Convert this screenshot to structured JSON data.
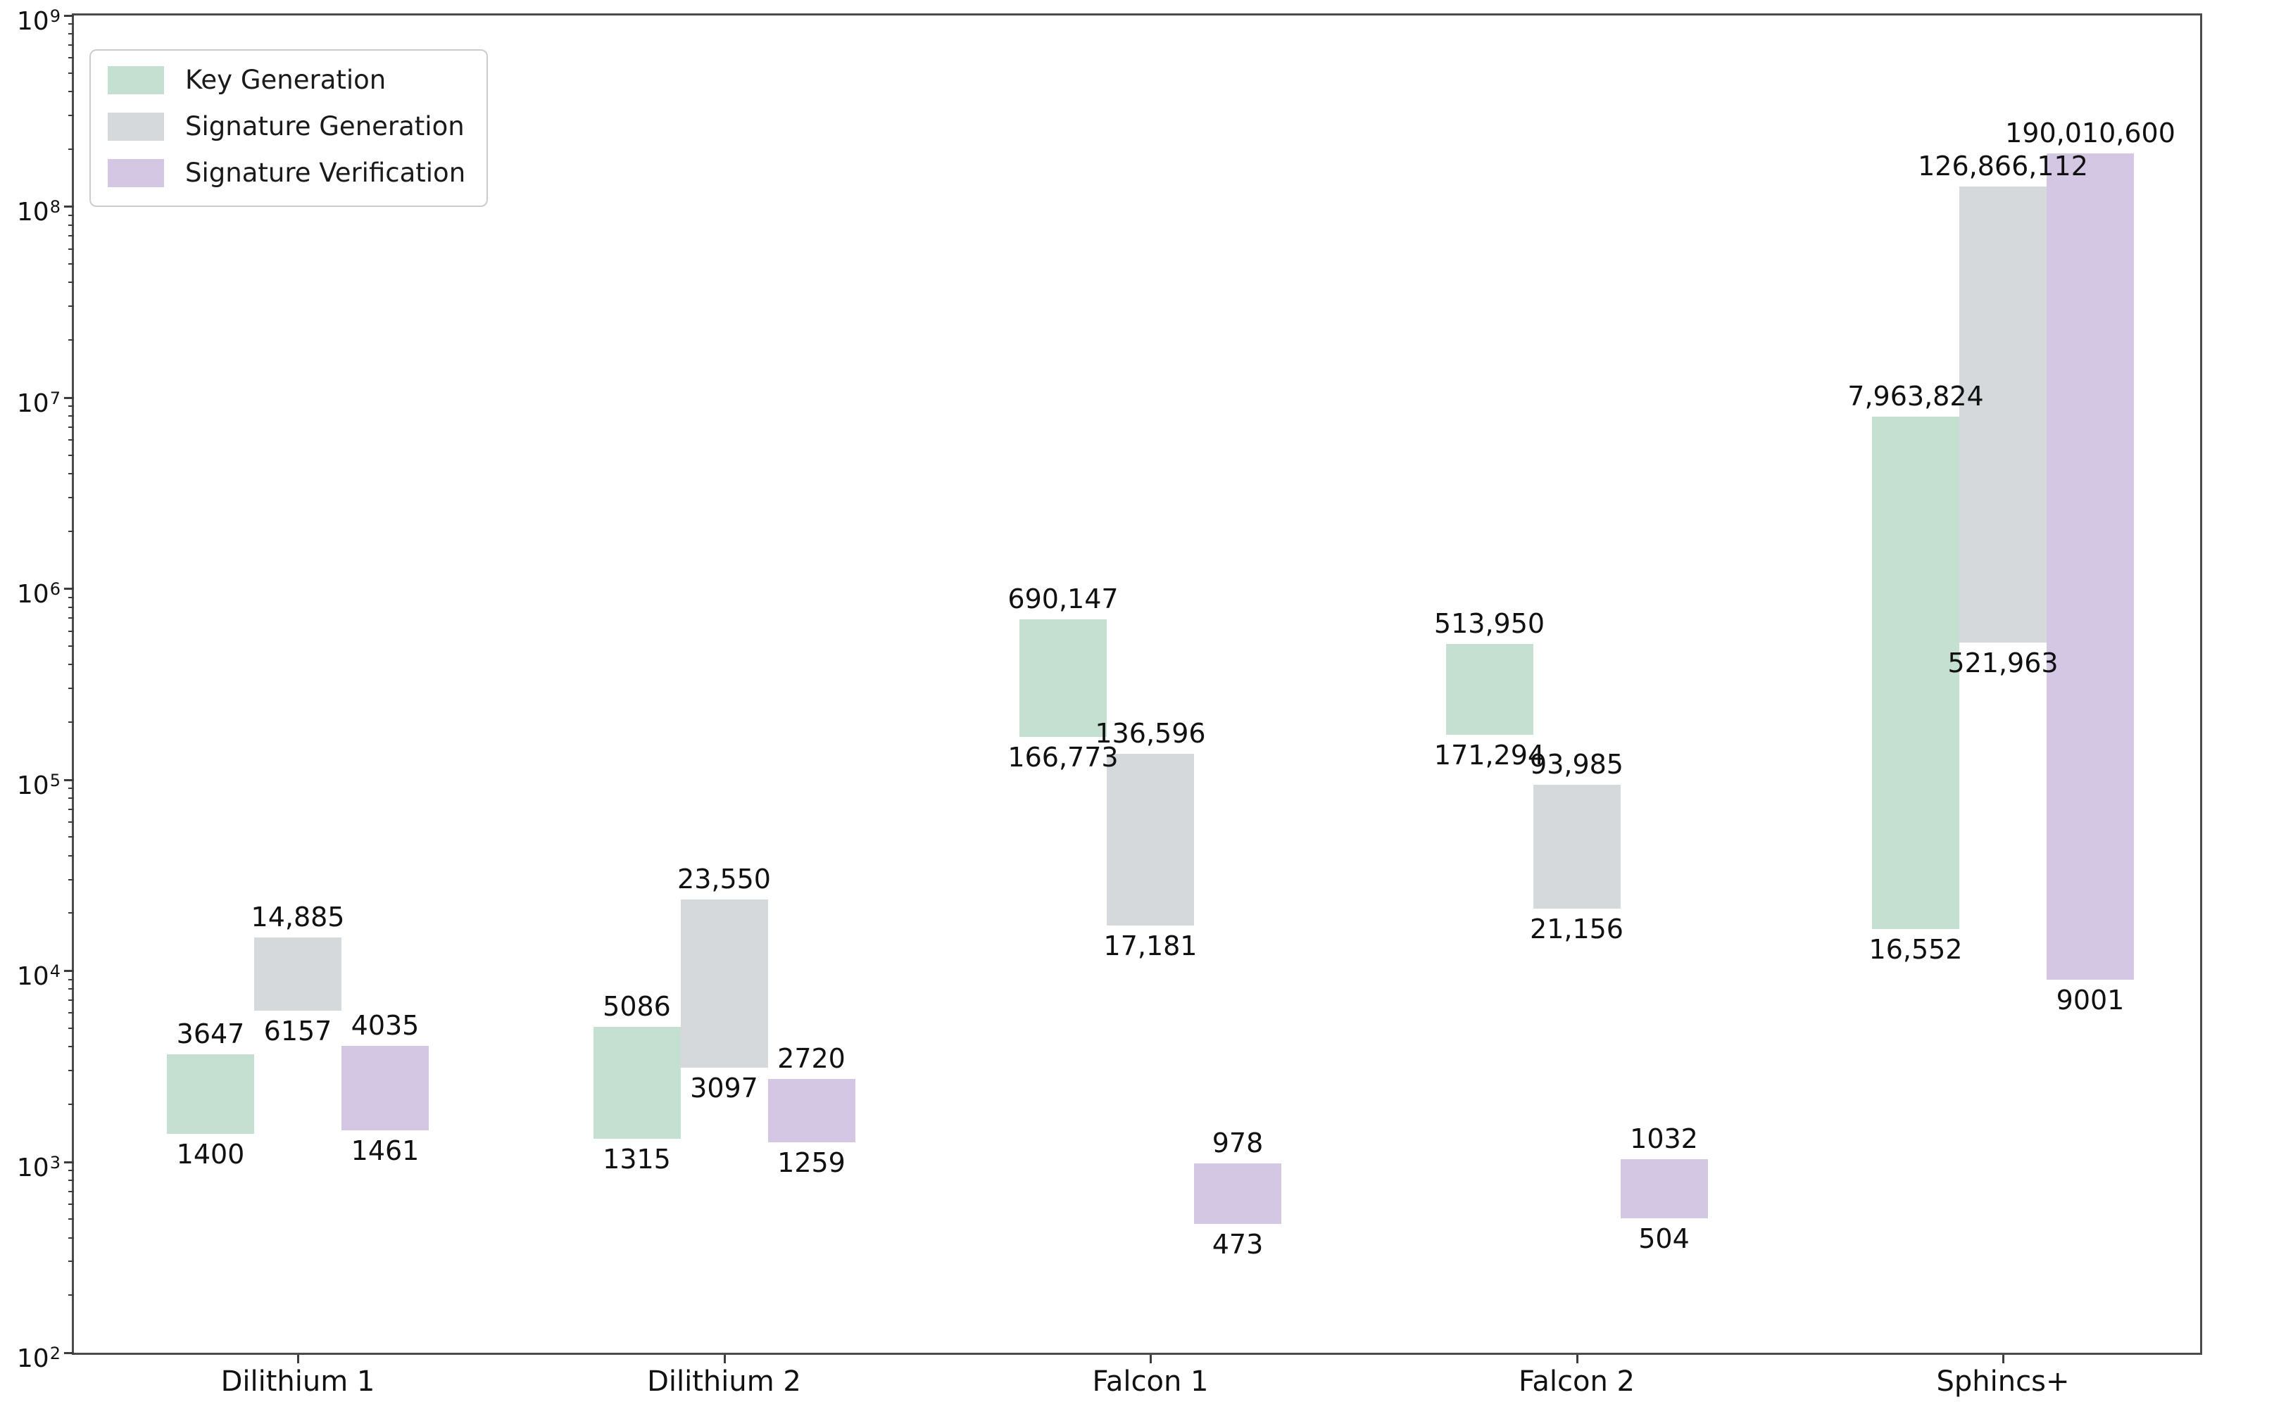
{
  "figure": {
    "background": "#ffffff",
    "text_color": "#111111",
    "axis_color": "#4b4b4b"
  },
  "legend": {
    "position": "upper left",
    "items": [
      {
        "label": "Key Generation",
        "color": "#c5e0d0"
      },
      {
        "label": "Signature Generation",
        "color": "#d5d9dc"
      },
      {
        "label": "Signature Verification",
        "color": "#d4c7e4"
      }
    ]
  },
  "chart_data": {
    "type": "bar",
    "subtype": "floating_range_bars",
    "title": "",
    "xlabel": "",
    "ylabel": "",
    "yscale": "log",
    "ylim": [
      100,
      1000000000
    ],
    "y_tick_exponents": [
      2,
      3,
      4,
      5,
      6,
      7,
      8,
      9
    ],
    "grid": false,
    "legend_position": "upper left",
    "categories": [
      "Dilithium 1",
      "Dilithium 2",
      "Falcon 1",
      "Falcon 2",
      "Sphincs+"
    ],
    "series": [
      {
        "name": "Key Generation",
        "color": "#c5e0d0",
        "ranges": [
          [
            1400,
            3647
          ],
          [
            1315,
            5086
          ],
          [
            166773,
            690147
          ],
          [
            171294,
            513950
          ],
          [
            16552,
            7963824
          ]
        ],
        "range_labels": [
          [
            "1400",
            "3647"
          ],
          [
            "1315",
            "5086"
          ],
          [
            "166,773",
            "690,147"
          ],
          [
            "171,294",
            "513,950"
          ],
          [
            "16,552",
            "7,963,824"
          ]
        ]
      },
      {
        "name": "Signature Generation",
        "color": "#d5d9dc",
        "ranges": [
          [
            6157,
            14885
          ],
          [
            3097,
            23550
          ],
          [
            17181,
            136596
          ],
          [
            21156,
            93985
          ],
          [
            521963,
            126866112
          ]
        ],
        "range_labels": [
          [
            "6157",
            "14,885"
          ],
          [
            "3097",
            "23,550"
          ],
          [
            "17,181",
            "136,596"
          ],
          [
            "21,156",
            "93,985"
          ],
          [
            "521,963",
            "126,866,112"
          ]
        ]
      },
      {
        "name": "Signature Verification",
        "color": "#d4c7e4",
        "ranges": [
          [
            1461,
            4035
          ],
          [
            1259,
            2720
          ],
          [
            473,
            978
          ],
          [
            504,
            1032
          ],
          [
            9001,
            190010600
          ]
        ],
        "range_labels": [
          [
            "1461",
            "4035"
          ],
          [
            "1259",
            "2720"
          ],
          [
            "473",
            "978"
          ],
          [
            "504",
            "1032"
          ],
          [
            "9001",
            "190,010,600"
          ]
        ]
      }
    ]
  }
}
